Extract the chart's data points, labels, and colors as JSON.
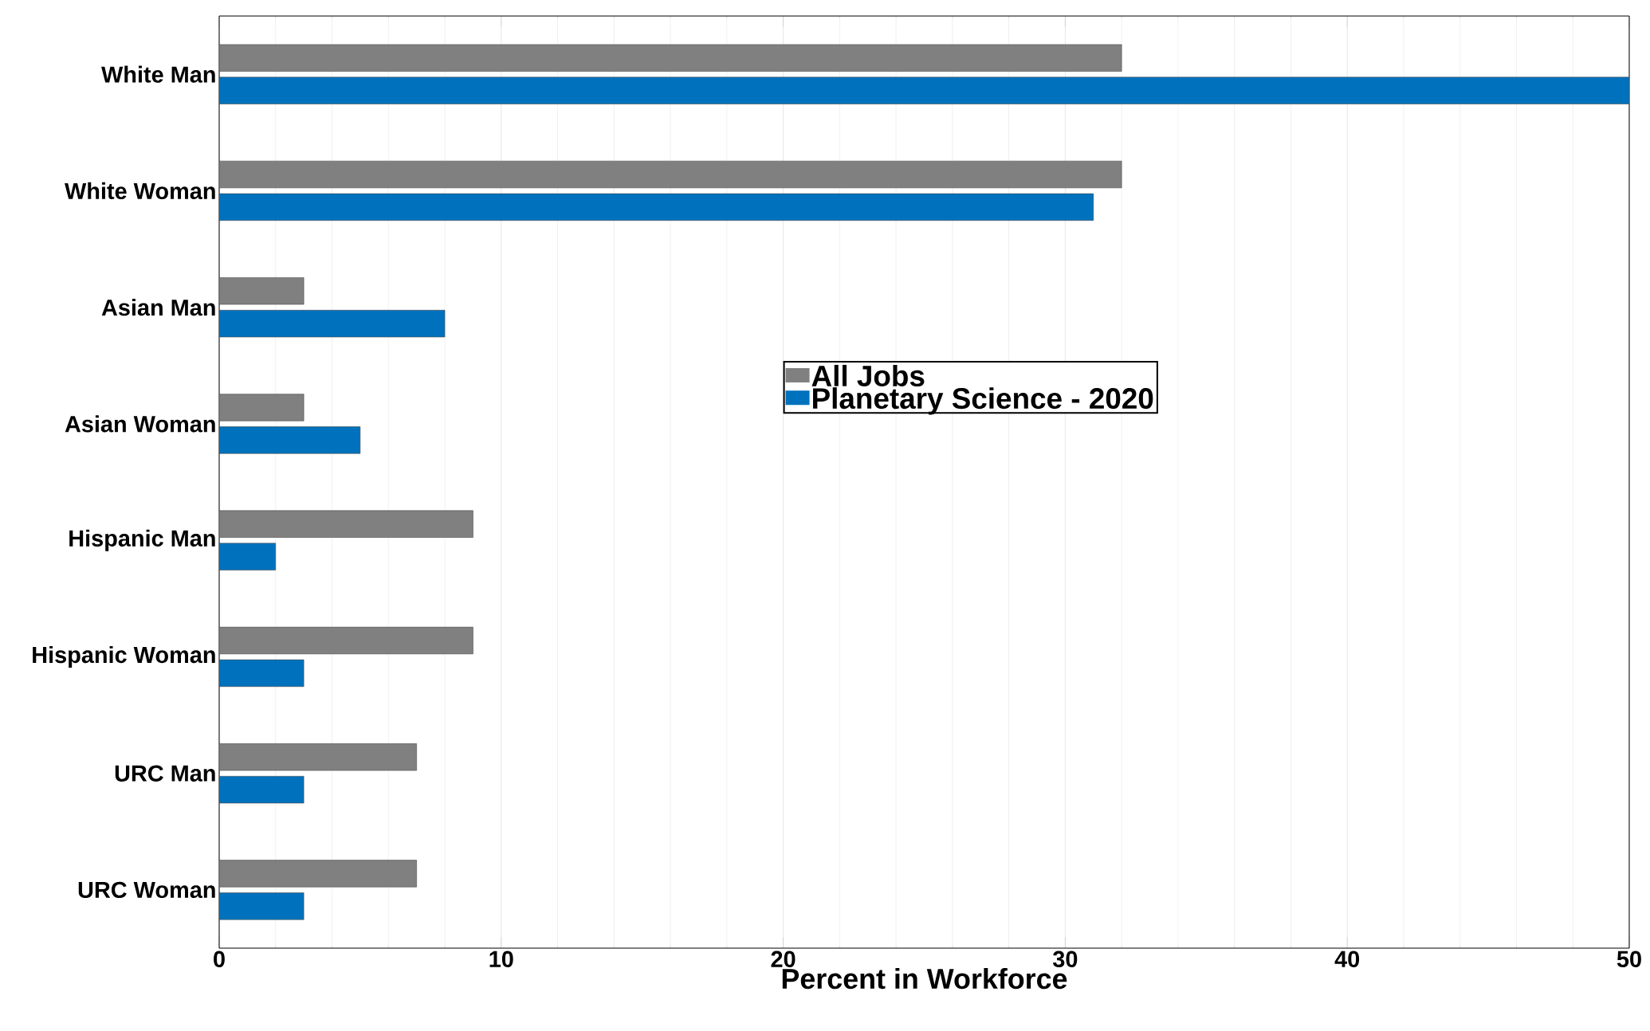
{
  "chart_data": {
    "type": "bar",
    "orientation": "horizontal",
    "xlabel": "Percent in Workforce",
    "categories": [
      "White Man",
      "White Woman",
      "Asian Man",
      "Asian Woman",
      "Hispanic Man",
      "Hispanic Woman",
      "URC Man",
      "URC Woman"
    ],
    "series": [
      {
        "name": "All Jobs",
        "color": "#808080",
        "values": [
          32,
          32,
          3,
          3,
          9,
          9,
          7,
          7
        ]
      },
      {
        "name": "Planetary Science - 2020",
        "color": "#0072bd",
        "values": [
          50,
          31,
          8,
          5,
          2,
          3,
          3,
          3
        ]
      }
    ],
    "xlim": [
      0,
      50
    ],
    "xticks": [
      0,
      10,
      20,
      30,
      40,
      50
    ],
    "grid": "x",
    "legend": "center"
  }
}
